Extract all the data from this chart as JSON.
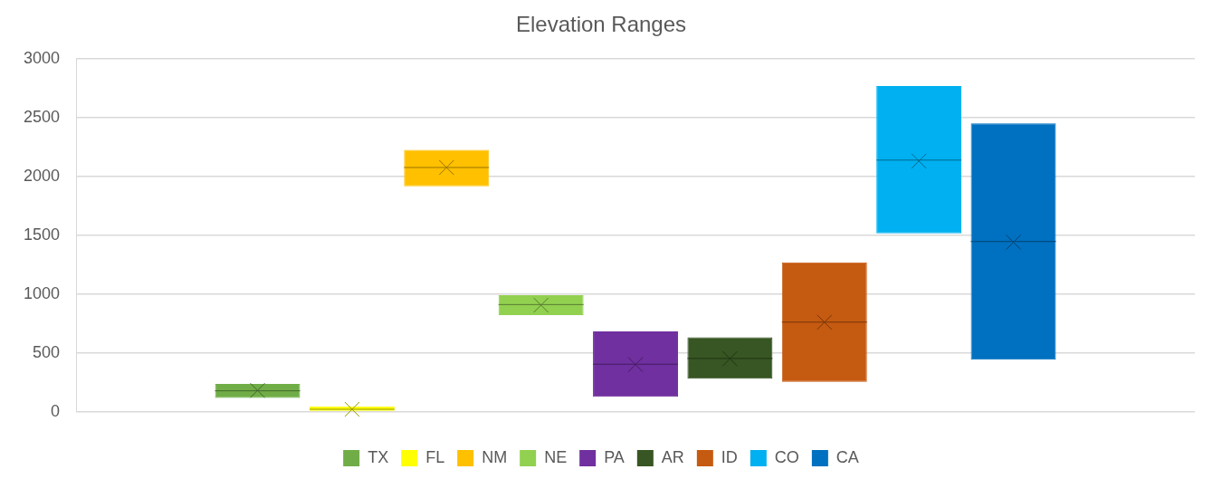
{
  "chart_data": {
    "type": "box",
    "title": "Elevation Ranges",
    "categories": [
      null
    ],
    "series": [
      {
        "name": "TX",
        "color": "#70ad47",
        "boxes": [
          {
            "low": 117,
            "q1": 117,
            "median": 177,
            "q3": 235,
            "high": 235,
            "mean": 180
          }
        ]
      },
      {
        "name": "FL",
        "color": "#ffff00",
        "boxes": [
          {
            "low": 0,
            "q1": 0,
            "median": 20,
            "q3": 45,
            "high": 45,
            "mean": 20
          }
        ]
      },
      {
        "name": "NM",
        "color": "#ffc000",
        "boxes": [
          {
            "low": 1916,
            "q1": 1916,
            "median": 2075,
            "q3": 2225,
            "high": 2225,
            "mean": 2075
          }
        ]
      },
      {
        "name": "NE",
        "color": "#92d050",
        "boxes": [
          {
            "low": 820,
            "q1": 820,
            "median": 910,
            "q3": 990,
            "high": 990,
            "mean": 905
          }
        ]
      },
      {
        "name": "PA",
        "color": "#7030a0",
        "boxes": [
          {
            "low": 125,
            "q1": 125,
            "median": 403,
            "q3": 681,
            "high": 681,
            "mean": 400
          }
        ]
      },
      {
        "name": "AR",
        "color": "#375623",
        "boxes": [
          {
            "low": 280,
            "q1": 280,
            "median": 452,
            "q3": 632,
            "high": 632,
            "mean": 450
          }
        ]
      },
      {
        "name": "ID",
        "color": "#c55a11",
        "boxes": [
          {
            "low": 253,
            "q1": 253,
            "median": 761,
            "q3": 1268,
            "high": 1268,
            "mean": 760
          }
        ]
      },
      {
        "name": "CO",
        "color": "#00b0f0",
        "boxes": [
          {
            "low": 1515,
            "q1": 1515,
            "median": 2138,
            "q3": 2767,
            "high": 2767,
            "mean": 2130
          }
        ]
      },
      {
        "name": "CA",
        "color": "#0070c0",
        "boxes": [
          {
            "low": 441,
            "q1": 441,
            "median": 1446,
            "q3": 2451,
            "high": 2451,
            "mean": 1440
          }
        ]
      }
    ],
    "ylim": [
      0,
      3000
    ],
    "yticks": [
      0,
      500,
      1000,
      1500,
      2000,
      2500,
      3000
    ],
    "grid": "y",
    "legend": "bottom"
  }
}
